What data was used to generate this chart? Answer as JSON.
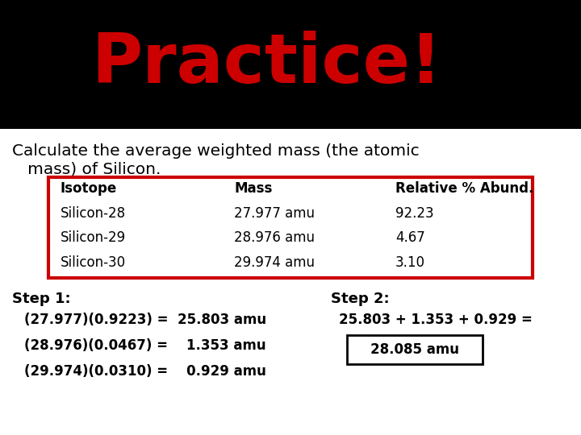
{
  "title": "Practice!",
  "title_color": "#cc0000",
  "header_bg": "#000000",
  "body_bg": "#ffffff",
  "subtitle_line1": "Calculate the average weighted mass (the atomic",
  "subtitle_line2": "   mass) of Silicon.",
  "table_headers": [
    "Isotope",
    "Mass",
    "Relative % Abund."
  ],
  "table_rows": [
    [
      "Silicon-28",
      "27.977 amu",
      "92.23"
    ],
    [
      "Silicon-29",
      "28.976 amu",
      "4.67"
    ],
    [
      "Silicon-30",
      "29.974 amu",
      "3.10"
    ]
  ],
  "step1_label": "Step 1:",
  "step1_lines": [
    "(27.977)(0.9223) =  25.803 amu",
    "(28.976)(0.0467) =    1.353 amu",
    "(29.974)(0.0310) =    0.929 amu"
  ],
  "step2_label": "Step 2:",
  "step2_line1": "25.803 + 1.353 + 0.929 =",
  "step2_answer": "28.085 amu",
  "table_border_color": "#cc0000",
  "answer_border_color": "#000000"
}
